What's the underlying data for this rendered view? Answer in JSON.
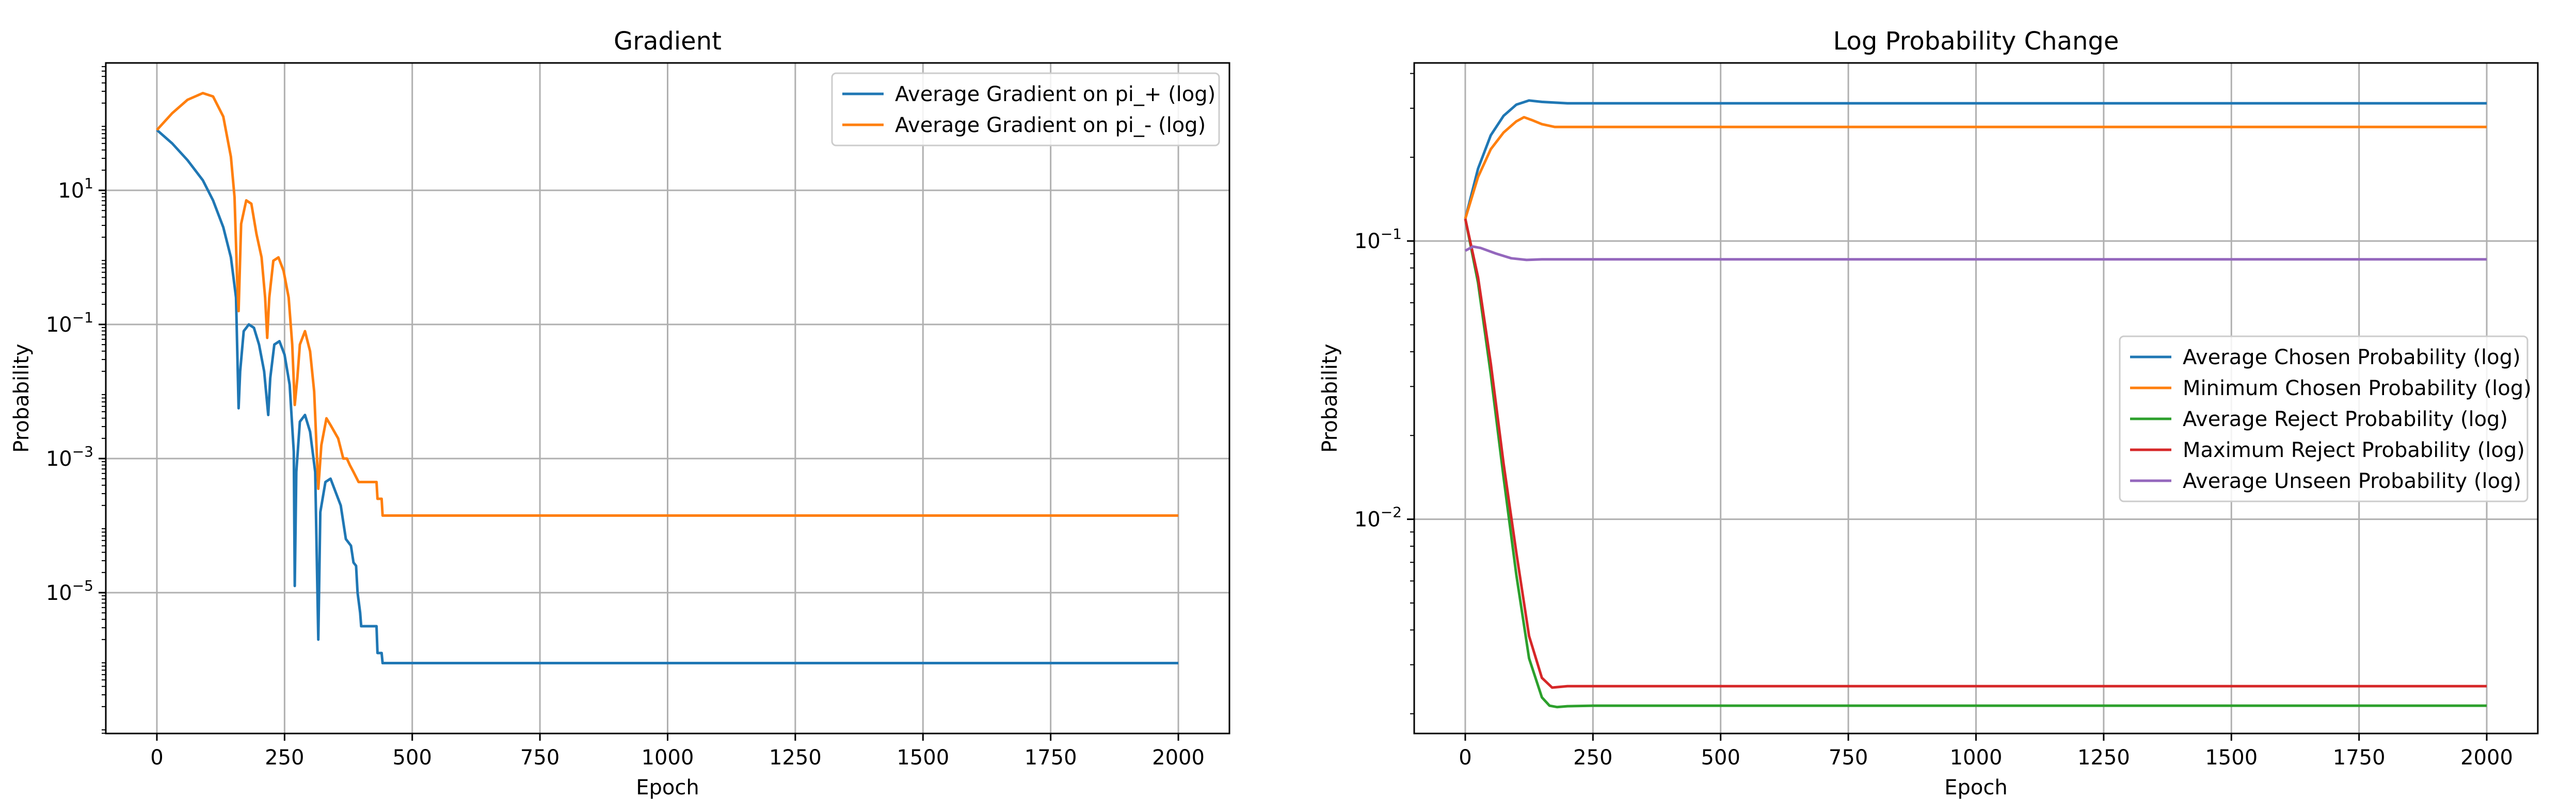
{
  "chart_data": [
    {
      "type": "line",
      "title": "Gradient",
      "xlabel": "Epoch",
      "ylabel": "Probability",
      "yscale": "log",
      "xlim": [
        -100,
        2100
      ],
      "ylim_log10": [
        -7.1,
        2.9
      ],
      "xticks": [
        0,
        250,
        500,
        750,
        1000,
        1250,
        1500,
        1750,
        2000
      ],
      "xtick_labels": [
        "0",
        "250",
        "500",
        "750",
        "1000",
        "1250",
        "1500",
        "1750",
        "2000"
      ],
      "yticks_log10": [
        1,
        -1,
        -3,
        -5
      ],
      "ytick_labels": [
        {
          "base": "10",
          "exp": "1"
        },
        {
          "base": "10",
          "exp": "−1"
        },
        {
          "base": "10",
          "exp": "−3"
        },
        {
          "base": "10",
          "exp": "−5"
        }
      ],
      "grid": true,
      "legend_position": "top-right",
      "series": [
        {
          "name": "Average Gradient on pi_+ (log)",
          "color": "#1f77b4",
          "points": [
            [
              0,
              1.9
            ],
            [
              30,
              1.7
            ],
            [
              60,
              1.45
            ],
            [
              90,
              1.15
            ],
            [
              110,
              0.85
            ],
            [
              130,
              0.45
            ],
            [
              145,
              0.0
            ],
            [
              155,
              -0.6
            ],
            [
              160,
              -2.25
            ],
            [
              163,
              -1.7
            ],
            [
              170,
              -1.1
            ],
            [
              180,
              -1.0
            ],
            [
              190,
              -1.05
            ],
            [
              200,
              -1.3
            ],
            [
              210,
              -1.7
            ],
            [
              218,
              -2.35
            ],
            [
              222,
              -1.8
            ],
            [
              230,
              -1.3
            ],
            [
              240,
              -1.25
            ],
            [
              250,
              -1.45
            ],
            [
              260,
              -1.9
            ],
            [
              268,
              -2.9
            ],
            [
              270,
              -4.9
            ],
            [
              273,
              -3.2
            ],
            [
              280,
              -2.45
            ],
            [
              290,
              -2.35
            ],
            [
              300,
              -2.6
            ],
            [
              310,
              -3.2
            ],
            [
              316,
              -5.7
            ],
            [
              320,
              -3.8
            ],
            [
              330,
              -3.35
            ],
            [
              340,
              -3.3
            ],
            [
              350,
              -3.5
            ],
            [
              360,
              -3.7
            ],
            [
              370,
              -4.2
            ],
            [
              380,
              -4.3
            ],
            [
              385,
              -4.55
            ],
            [
              390,
              -4.6
            ],
            [
              393,
              -5.0
            ],
            [
              398,
              -5.3
            ],
            [
              400,
              -5.5
            ],
            [
              430,
              -5.5
            ],
            [
              432,
              -5.9
            ],
            [
              440,
              -5.9
            ],
            [
              442,
              -6.05
            ],
            [
              2000,
              -6.05
            ]
          ]
        },
        {
          "name": "Average Gradient on pi_- (log)",
          "color": "#ff7f0e",
          "points": [
            [
              0,
              1.9
            ],
            [
              30,
              2.15
            ],
            [
              60,
              2.35
            ],
            [
              90,
              2.45
            ],
            [
              110,
              2.4
            ],
            [
              130,
              2.1
            ],
            [
              145,
              1.5
            ],
            [
              152,
              0.9
            ],
            [
              157,
              -0.3
            ],
            [
              160,
              -0.8
            ],
            [
              165,
              0.5
            ],
            [
              175,
              0.85
            ],
            [
              185,
              0.8
            ],
            [
              195,
              0.35
            ],
            [
              205,
              0.0
            ],
            [
              212,
              -0.6
            ],
            [
              216,
              -1.2
            ],
            [
              220,
              -0.6
            ],
            [
              228,
              -0.05
            ],
            [
              238,
              0.0
            ],
            [
              248,
              -0.2
            ],
            [
              258,
              -0.6
            ],
            [
              265,
              -1.3
            ],
            [
              270,
              -2.2
            ],
            [
              275,
              -1.8
            ],
            [
              280,
              -1.3
            ],
            [
              290,
              -1.1
            ],
            [
              300,
              -1.4
            ],
            [
              308,
              -2.0
            ],
            [
              316,
              -3.45
            ],
            [
              322,
              -2.8
            ],
            [
              332,
              -2.4
            ],
            [
              340,
              -2.5
            ],
            [
              355,
              -2.7
            ],
            [
              365,
              -3.0
            ],
            [
              372,
              -3.0
            ],
            [
              378,
              -3.1
            ],
            [
              385,
              -3.2
            ],
            [
              395,
              -3.35
            ],
            [
              430,
              -3.35
            ],
            [
              432,
              -3.6
            ],
            [
              440,
              -3.6
            ],
            [
              442,
              -3.85
            ],
            [
              2000,
              -3.85
            ]
          ]
        }
      ]
    },
    {
      "type": "line",
      "title": "Log Probability Change",
      "xlabel": "Epoch",
      "ylabel": "Probability",
      "yscale": "log",
      "xlim": [
        -100,
        2100
      ],
      "ylim_log10": [
        -2.77,
        -0.36
      ],
      "xticks": [
        0,
        250,
        500,
        750,
        1000,
        1250,
        1500,
        1750,
        2000
      ],
      "xtick_labels": [
        "0",
        "250",
        "500",
        "750",
        "1000",
        "1250",
        "1500",
        "1750",
        "2000"
      ],
      "yticks_log10": [
        -1,
        -2
      ],
      "ytick_labels": [
        {
          "base": "10",
          "exp": "−1"
        },
        {
          "base": "10",
          "exp": "−2"
        }
      ],
      "grid": true,
      "legend_position": "center-right",
      "series": [
        {
          "name": "Average Chosen Probability (log)",
          "color": "#1f77b4",
          "points": [
            [
              0,
              -0.92
            ],
            [
              25,
              -0.74
            ],
            [
              50,
              -0.62
            ],
            [
              75,
              -0.55
            ],
            [
              100,
              -0.51
            ],
            [
              125,
              -0.495
            ],
            [
              150,
              -0.5
            ],
            [
              200,
              -0.505
            ],
            [
              2000,
              -0.505
            ]
          ]
        },
        {
          "name": "Minimum Chosen Probability (log)",
          "color": "#ff7f0e",
          "points": [
            [
              0,
              -0.92
            ],
            [
              25,
              -0.77
            ],
            [
              50,
              -0.67
            ],
            [
              75,
              -0.61
            ],
            [
              100,
              -0.57
            ],
            [
              115,
              -0.555
            ],
            [
              130,
              -0.565
            ],
            [
              150,
              -0.58
            ],
            [
              175,
              -0.59
            ],
            [
              200,
              -0.59
            ],
            [
              2000,
              -0.59
            ]
          ]
        },
        {
          "name": "Average Reject Probability (log)",
          "color": "#2ca02c",
          "points": [
            [
              0,
              -0.92
            ],
            [
              25,
              -1.15
            ],
            [
              50,
              -1.48
            ],
            [
              75,
              -1.85
            ],
            [
              100,
              -2.2
            ],
            [
              125,
              -2.5
            ],
            [
              150,
              -2.64
            ],
            [
              165,
              -2.67
            ],
            [
              180,
              -2.675
            ],
            [
              200,
              -2.672
            ],
            [
              250,
              -2.67
            ],
            [
              2000,
              -2.67
            ]
          ]
        },
        {
          "name": "Maximum Reject Probability (log)",
          "color": "#d62728",
          "points": [
            [
              0,
              -0.92
            ],
            [
              25,
              -1.13
            ],
            [
              50,
              -1.44
            ],
            [
              75,
              -1.8
            ],
            [
              100,
              -2.12
            ],
            [
              125,
              -2.42
            ],
            [
              150,
              -2.57
            ],
            [
              170,
              -2.605
            ],
            [
              200,
              -2.6
            ],
            [
              250,
              -2.6
            ],
            [
              2000,
              -2.6
            ]
          ]
        },
        {
          "name": "Average Unseen Probability (log)",
          "color": "#9467bd",
          "points": [
            [
              0,
              -1.035
            ],
            [
              15,
              -1.02
            ],
            [
              30,
              -1.025
            ],
            [
              60,
              -1.045
            ],
            [
              90,
              -1.062
            ],
            [
              120,
              -1.068
            ],
            [
              150,
              -1.066
            ],
            [
              200,
              -1.066
            ],
            [
              2000,
              -1.066
            ]
          ]
        }
      ]
    }
  ]
}
